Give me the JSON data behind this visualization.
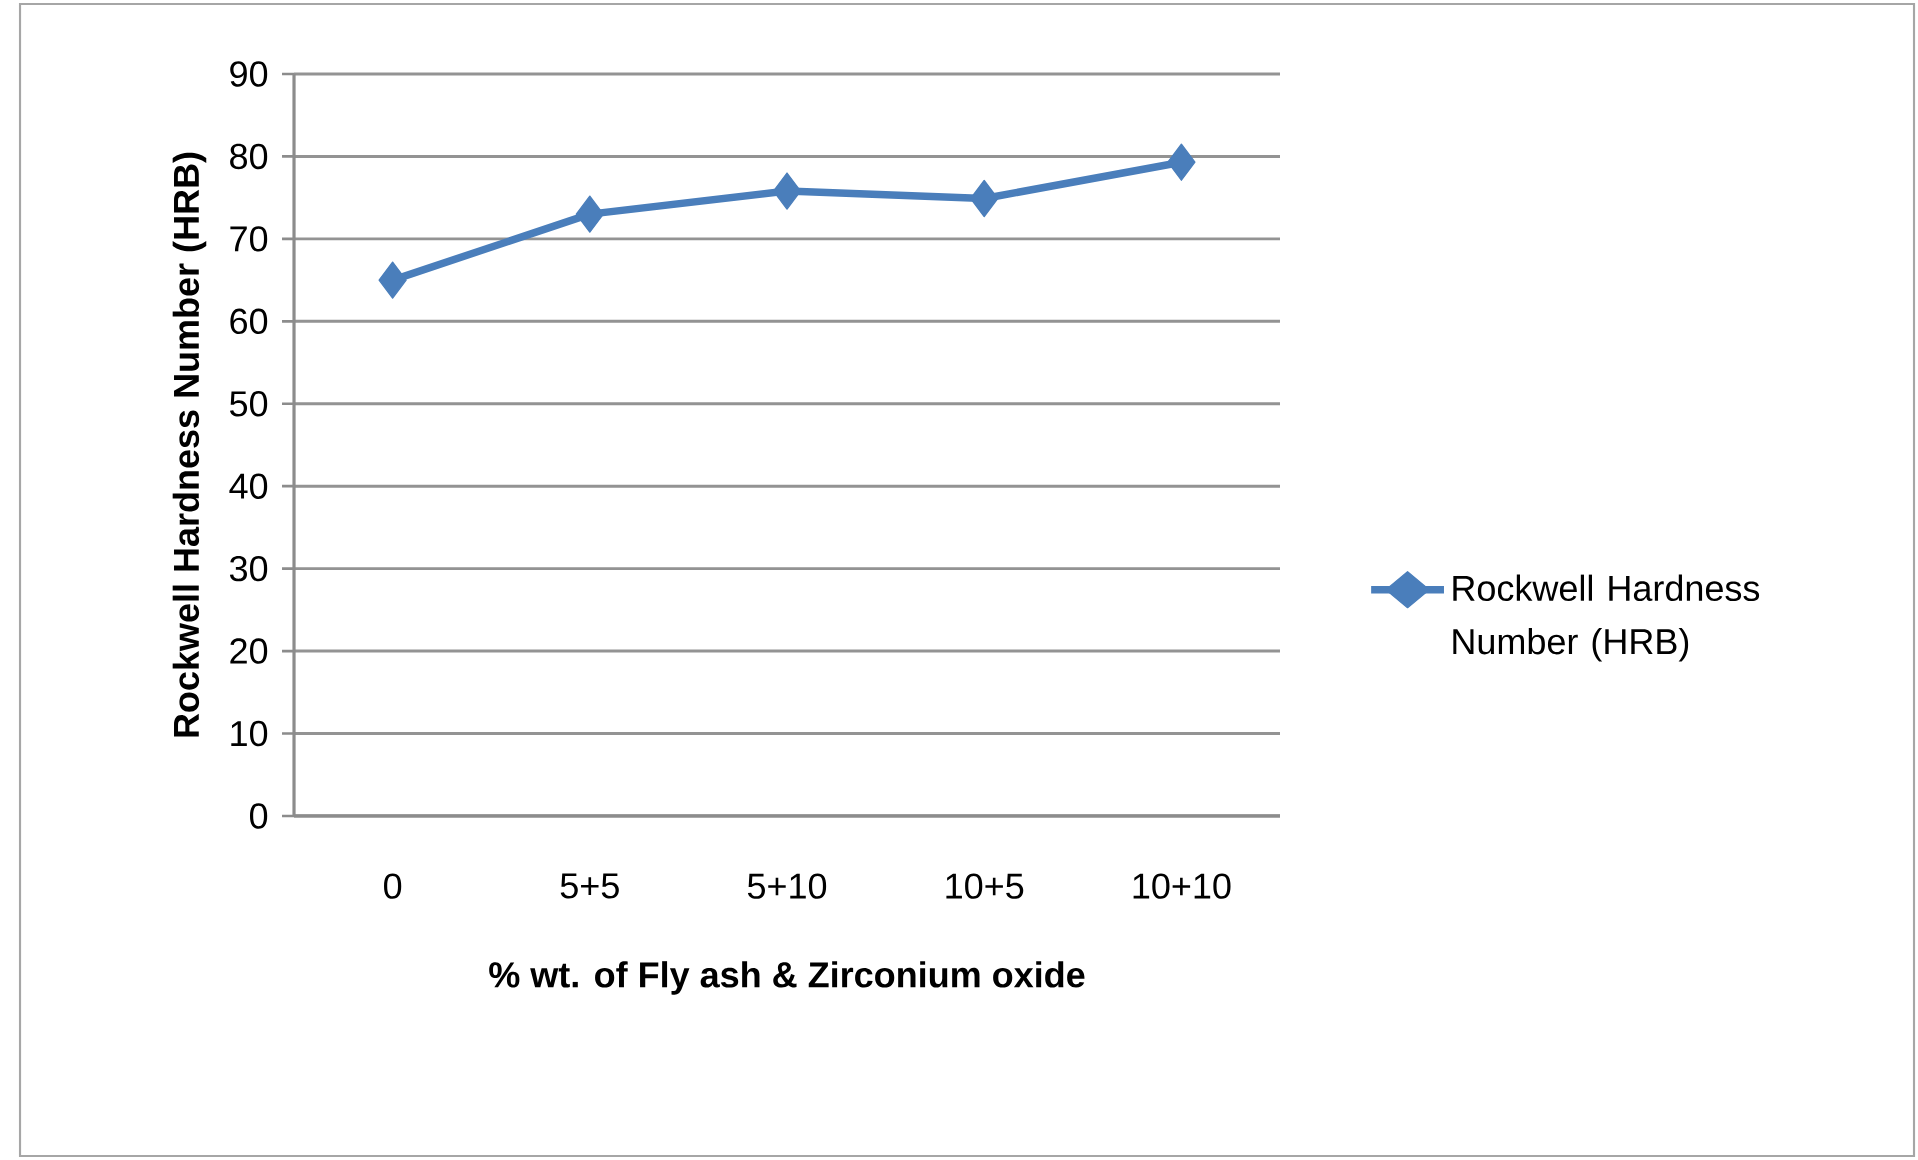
{
  "chart_data": {
    "type": "line",
    "xlabel": "% wt. of Fly ash & Zirconium oxide",
    "ylabel": "Rockwell Hardness Number (HRB)",
    "categories": [
      "0",
      "5+5",
      "5+10",
      "10+5",
      "10+10"
    ],
    "series": [
      {
        "name": "Rockwell Hardness Number (HRB)",
        "color": "#4a7ebb",
        "values": [
          65,
          73,
          75.8,
          74.9,
          79.3
        ]
      }
    ],
    "ylim": [
      0,
      90
    ],
    "yticks": [
      0,
      10,
      20,
      30,
      40,
      50,
      60,
      70,
      80,
      90
    ],
    "grid": "y",
    "legend": "right",
    "marker": "diamond",
    "line_style": "solid"
  }
}
